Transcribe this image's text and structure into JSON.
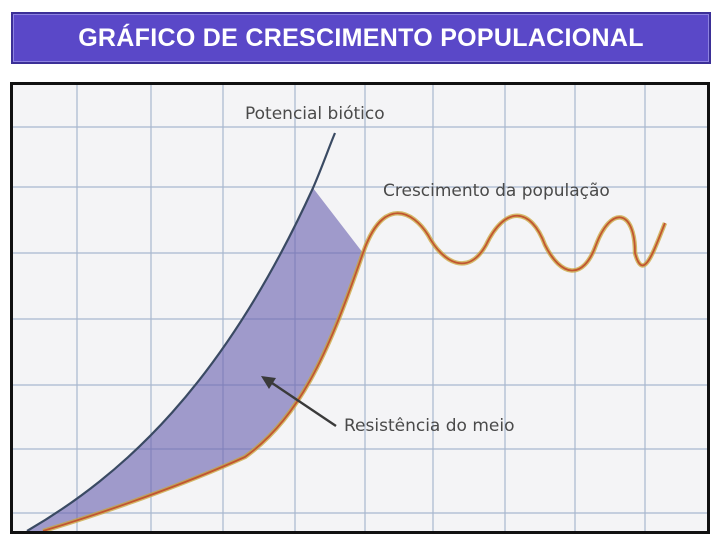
{
  "header": {
    "title": "GRÁFICO DE CRESCIMENTO POPULACIONAL"
  },
  "diagram": {
    "labels": {
      "biotic_potential": "Potencial biótico",
      "population_growth": "Crescimento da população",
      "environmental_resistance": "Resistência do meio"
    },
    "colors": {
      "title_bar": "#5a48c8",
      "grid": "#a8b7cf",
      "biotic_curve": "#3a4a63",
      "population_curve": "#c9a43a",
      "population_curve_core": "#c2552f",
      "resistance_fill": "#6a62b0",
      "arrow": "#3a3a3a"
    },
    "icons": {
      "arrow": "arrow-pointing-to-shaded-area"
    }
  }
}
